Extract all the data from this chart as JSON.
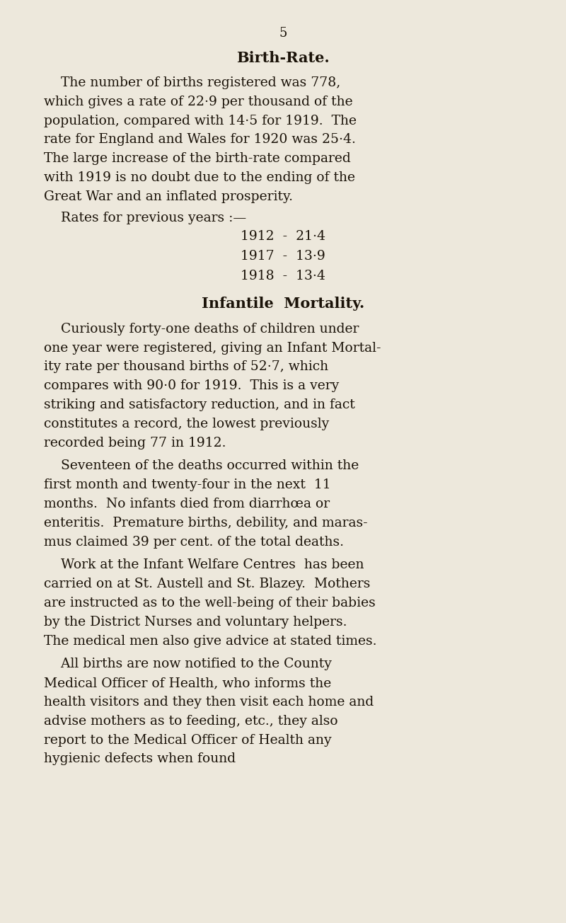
{
  "background_color": "#ede8dc",
  "text_color": "#1a1208",
  "page_number": "5",
  "title1": "Birth-Rate.",
  "title2": "Infantile  Mortality.",
  "para1_lines": [
    "    The number of births registered was 778,",
    "which gives a rate of 22·9 per thousand of the",
    "population, compared with 14·5 for 1919.  The",
    "rate for England and Wales for 1920 was 25·4.",
    "The large increase of the birth-rate compared",
    "with 1919 is no doubt due to the ending of the",
    "Great War and an inflated prosperity."
  ],
  "rates_intro": "    Rates for previous years :—",
  "rates": [
    "1912  -  21·4",
    "1917  -  13·9",
    "1918  -  13·4"
  ],
  "para2_lines": [
    "    Curiously forty-one deaths of children under",
    "one year were registered, giving an Infant Mortal-",
    "ity rate per thousand births of 52·7, which",
    "compares with 90·0 for 1919.  This is a very",
    "striking and satisfactory reduction, and in fact",
    "constitutes a record, the lowest previously",
    "recorded being 77 in 1912."
  ],
  "para3_lines": [
    "    Seventeen of the deaths occurred within the",
    "first month and twenty-four in the next  11",
    "months.  No infants died from diarrhœa or",
    "enteritis.  Premature births, debility, and maras-",
    "mus claimed 39 per cent. of the total deaths."
  ],
  "para4_lines": [
    "    Work at the Infant Welfare Centres  has been",
    "carried on at St. Austell and St. Blazey.  Mothers",
    "are instructed as to the well-being of their babies",
    "by the District Nurses and voluntary helpers.",
    "The medical men also give advice at stated times."
  ],
  "para5_lines": [
    "    All births are now notified to the County",
    "Medical Officer of Health, who informs the",
    "health visitors and they then visit each home and",
    "advise mothers as to feeding, etc., they also",
    "report to the Medical Officer of Health any",
    "hygienic defects when found"
  ],
  "fig_width": 8.0,
  "fig_height": 13.04,
  "dpi": 100
}
